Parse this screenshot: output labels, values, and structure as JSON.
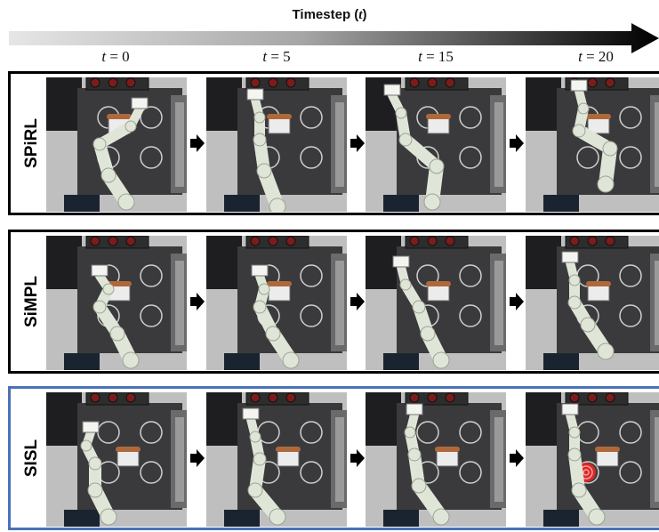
{
  "header": {
    "title_word": "Timestep",
    "title_var": "t",
    "time_labels": [
      {
        "var": "t",
        "eq": " = ",
        "val": "0"
      },
      {
        "var": "t",
        "eq": " = ",
        "val": "5"
      },
      {
        "var": "t",
        "eq": " = ",
        "val": "15"
      },
      {
        "var": "t",
        "eq": " = ",
        "val": "20"
      }
    ]
  },
  "rows": [
    {
      "label": "SPiRL",
      "border_color": "#000000"
    },
    {
      "label": "SiMPL",
      "border_color": "#000000"
    },
    {
      "label": "SISL",
      "border_color": "#4a72b8"
    }
  ],
  "colors": {
    "stove_top": "#3a3a3c",
    "counter": "#bfbfbf",
    "robot_arm": "#dfe6d8",
    "kettle_handle": "#b0683a",
    "burner_active": "#d62828"
  }
}
